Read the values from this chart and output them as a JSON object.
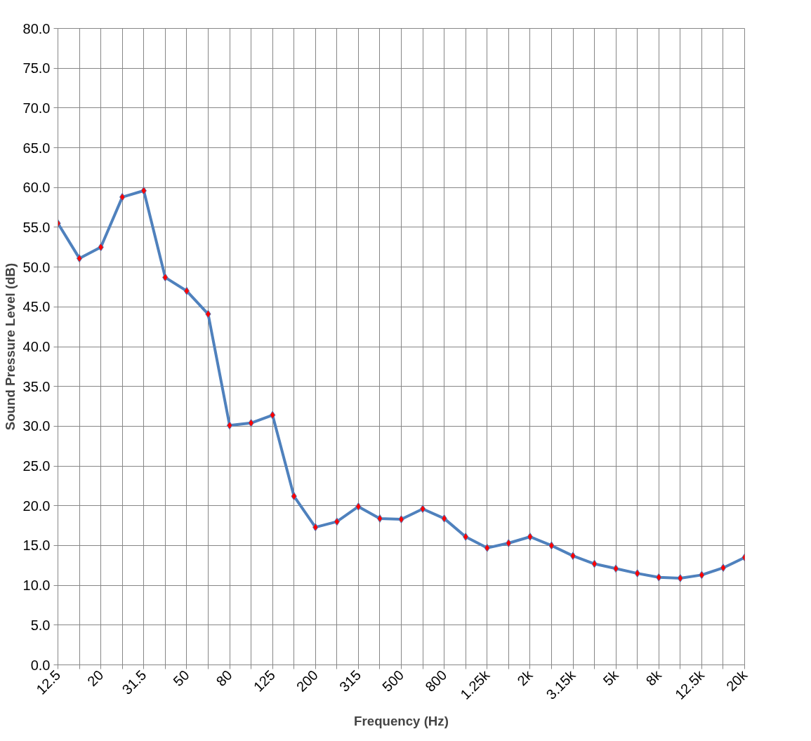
{
  "chart_data": {
    "type": "line",
    "xlabel": "Frequency (Hz)",
    "ylabel": "Sound Pressure Level (dB)",
    "categories": [
      "12.5",
      null,
      "20",
      null,
      "31.5",
      null,
      "50",
      null,
      "80",
      null,
      "125",
      null,
      "200",
      null,
      "315",
      null,
      "500",
      null,
      "800",
      null,
      "1.25k",
      null,
      "2k",
      null,
      "3.15k",
      null,
      "5k",
      null,
      "8k",
      null,
      "12.5k",
      null,
      "20k"
    ],
    "series": [
      {
        "color": "#4f81bd",
        "colors": [
          "#ff0000",
          "#ff0000",
          "#ff0000",
          "#ff0000",
          "#ff0000",
          "#ff0000",
          "#ff0000",
          "#ff0000",
          "#ff0000",
          "#ff0000",
          "#ff0000",
          "#ff0000",
          "#ff0000",
          "#ff0000",
          "#ff0000",
          "#ff0000",
          "#ff0000",
          "#ff0000",
          "#ff0000",
          "#ff0000",
          "#ff0000",
          "#ff0000",
          "#ff0000",
          "#ff0000",
          "#ff0000",
          "#ff0000",
          "#ff0000",
          "#ff0000",
          "#ff0000",
          "#ff0000",
          "#ff0000",
          "#ff0000",
          "#ff0000"
        ],
        "values": [
          55.5,
          51.1,
          52.5,
          58.8,
          59.6,
          48.7,
          47.0,
          44.1,
          30.1,
          30.4,
          31.4,
          21.2,
          17.3,
          18.0,
          19.9,
          18.4,
          18.3,
          19.6,
          18.4,
          16.1,
          14.7,
          15.3,
          16.1,
          15.0,
          13.7,
          12.7,
          12.1,
          11.5,
          11.0,
          10.9,
          11.3,
          12.2,
          13.5
        ]
      }
    ],
    "ylim": [
      0,
      80
    ],
    "yticks": [
      {
        "value": 0,
        "label": "0.0"
      },
      {
        "value": 5,
        "label": "5.0"
      },
      {
        "value": 10,
        "label": "10.0"
      },
      {
        "value": 15,
        "label": "15.0"
      },
      {
        "value": 20,
        "label": "20.0"
      },
      {
        "value": 25,
        "label": "25.0"
      },
      {
        "value": 30,
        "label": "30.0"
      },
      {
        "value": 35,
        "label": "35.0"
      },
      {
        "value": 40,
        "label": "40.0"
      },
      {
        "value": 45,
        "label": "45.0"
      },
      {
        "value": 50,
        "label": "50.0"
      },
      {
        "value": 55,
        "label": "55.0"
      },
      {
        "value": 60,
        "label": "60.0"
      },
      {
        "value": 65,
        "label": "65.0"
      },
      {
        "value": 70,
        "label": "70.0"
      },
      {
        "value": 75,
        "label": "75.0"
      },
      {
        "value": 80,
        "label": "80.0"
      }
    ],
    "grid": true,
    "marker": "diamond",
    "line_style": "solid"
  }
}
